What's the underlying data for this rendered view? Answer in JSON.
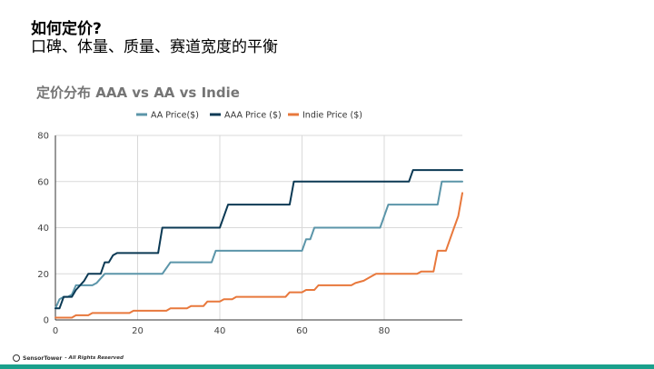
{
  "slide": {
    "title": "如何定价?",
    "subtitle": "口碑、体量、质量、赛道宽度的平衡"
  },
  "footer": {
    "brand": "SensorTower",
    "rights": "- All Rights Reserved"
  },
  "chart_data": {
    "type": "line",
    "title": "定价分布 AAA vs AA vs Indie",
    "xlabel": "",
    "ylabel": "",
    "xlim": [
      0,
      99
    ],
    "ylim": [
      0,
      80
    ],
    "x_ticks": [
      0,
      20,
      40,
      60,
      80
    ],
    "y_ticks": [
      0,
      20,
      40,
      60,
      80
    ],
    "grid": true,
    "legend_position": "top",
    "series": [
      {
        "name": "AA Price($)",
        "color": "#5b95a9",
        "points": [
          [
            0,
            5
          ],
          [
            1,
            9
          ],
          [
            2,
            10
          ],
          [
            3,
            10
          ],
          [
            4,
            11
          ],
          [
            5,
            15
          ],
          [
            9,
            15
          ],
          [
            10,
            16
          ],
          [
            12,
            20
          ],
          [
            26,
            20
          ],
          [
            28,
            25
          ],
          [
            38,
            25
          ],
          [
            39,
            30
          ],
          [
            60,
            30
          ],
          [
            61,
            35
          ],
          [
            62,
            35
          ],
          [
            63,
            40
          ],
          [
            79,
            40
          ],
          [
            81,
            50
          ],
          [
            93,
            50
          ],
          [
            94,
            60
          ],
          [
            99,
            60
          ]
        ]
      },
      {
        "name": "AAA Price ($)",
        "color": "#0b3954",
        "points": [
          [
            0,
            5
          ],
          [
            1,
            5
          ],
          [
            2,
            10
          ],
          [
            4,
            10
          ],
          [
            5,
            13
          ],
          [
            6,
            15
          ],
          [
            7,
            17
          ],
          [
            8,
            20
          ],
          [
            11,
            20
          ],
          [
            12,
            25
          ],
          [
            13,
            25
          ],
          [
            14,
            28
          ],
          [
            15,
            29
          ],
          [
            25,
            29
          ],
          [
            26,
            40
          ],
          [
            40,
            40
          ],
          [
            42,
            50
          ],
          [
            57,
            50
          ],
          [
            58,
            60
          ],
          [
            86,
            60
          ],
          [
            87,
            65
          ],
          [
            99,
            65
          ]
        ]
      },
      {
        "name": "Indie Price ($)",
        "color": "#e8783c",
        "points": [
          [
            0,
            1
          ],
          [
            4,
            1
          ],
          [
            5,
            2
          ],
          [
            8,
            2
          ],
          [
            9,
            3
          ],
          [
            18,
            3
          ],
          [
            19,
            4
          ],
          [
            27,
            4
          ],
          [
            28,
            5
          ],
          [
            32,
            5
          ],
          [
            33,
            6
          ],
          [
            36,
            6
          ],
          [
            37,
            8
          ],
          [
            40,
            8
          ],
          [
            41,
            9
          ],
          [
            43,
            9
          ],
          [
            44,
            10
          ],
          [
            56,
            10
          ],
          [
            57,
            12
          ],
          [
            60,
            12
          ],
          [
            61,
            13
          ],
          [
            63,
            13
          ],
          [
            64,
            15
          ],
          [
            72,
            15
          ],
          [
            73,
            16
          ],
          [
            75,
            17
          ],
          [
            77,
            19
          ],
          [
            78,
            20
          ],
          [
            88,
            20
          ],
          [
            89,
            21
          ],
          [
            92,
            21
          ],
          [
            93,
            30
          ],
          [
            95,
            30
          ],
          [
            97,
            40
          ],
          [
            98,
            45
          ],
          [
            99,
            55
          ]
        ]
      }
    ]
  }
}
